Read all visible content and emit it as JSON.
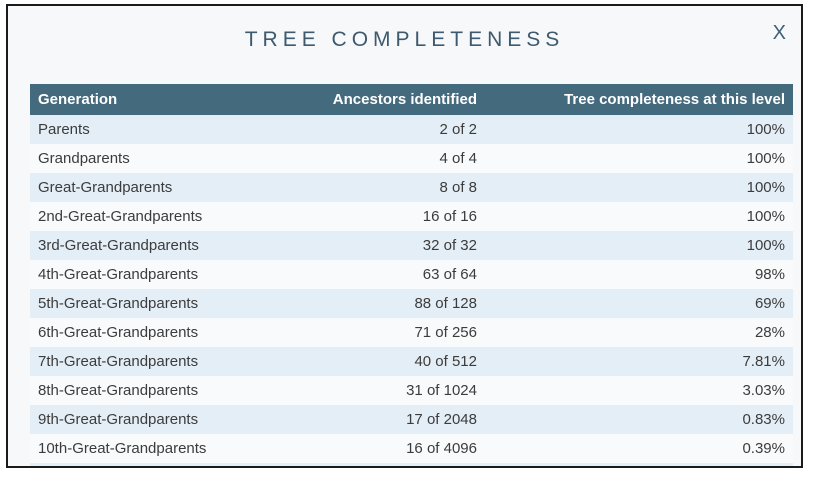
{
  "modal": {
    "title": "TREE COMPLETENESS",
    "close_label": "X"
  },
  "table": {
    "columns": [
      "Generation",
      "Ancestors identified",
      "Tree completeness at this level"
    ],
    "rows": [
      {
        "generation": "Parents",
        "ancestors": "2 of 2",
        "completeness": "100%"
      },
      {
        "generation": "Grandparents",
        "ancestors": "4 of 4",
        "completeness": "100%"
      },
      {
        "generation": "Great-Grandparents",
        "ancestors": "8 of 8",
        "completeness": "100%"
      },
      {
        "generation": "2nd-Great-Grandparents",
        "ancestors": "16 of 16",
        "completeness": "100%"
      },
      {
        "generation": "3rd-Great-Grandparents",
        "ancestors": "32 of 32",
        "completeness": "100%"
      },
      {
        "generation": "4th-Great-Grandparents",
        "ancestors": "63 of 64",
        "completeness": "98%"
      },
      {
        "generation": "5th-Great-Grandparents",
        "ancestors": "88 of 128",
        "completeness": "69%"
      },
      {
        "generation": "6th-Great-Grandparents",
        "ancestors": "71 of 256",
        "completeness": "28%"
      },
      {
        "generation": "7th-Great-Grandparents",
        "ancestors": "40 of 512",
        "completeness": "7.81%"
      },
      {
        "generation": "8th-Great-Grandparents",
        "ancestors": "31 of 1024",
        "completeness": "3.03%"
      },
      {
        "generation": "9th-Great-Grandparents",
        "ancestors": "17 of 2048",
        "completeness": "0.83%"
      },
      {
        "generation": "10th-Great-Grandparents",
        "ancestors": "16 of 4096",
        "completeness": "0.39%"
      }
    ]
  },
  "colors": {
    "header_bg": "#446a7e",
    "row_alt_bg": "#e4eef6",
    "row_bg": "#f9fafb",
    "modal_bg": "#f7f8f9",
    "title_color": "#3e5a6e",
    "border_color": "#1a1a1a",
    "row_text": "#3c3c3c",
    "header_text": "#ffffff"
  }
}
